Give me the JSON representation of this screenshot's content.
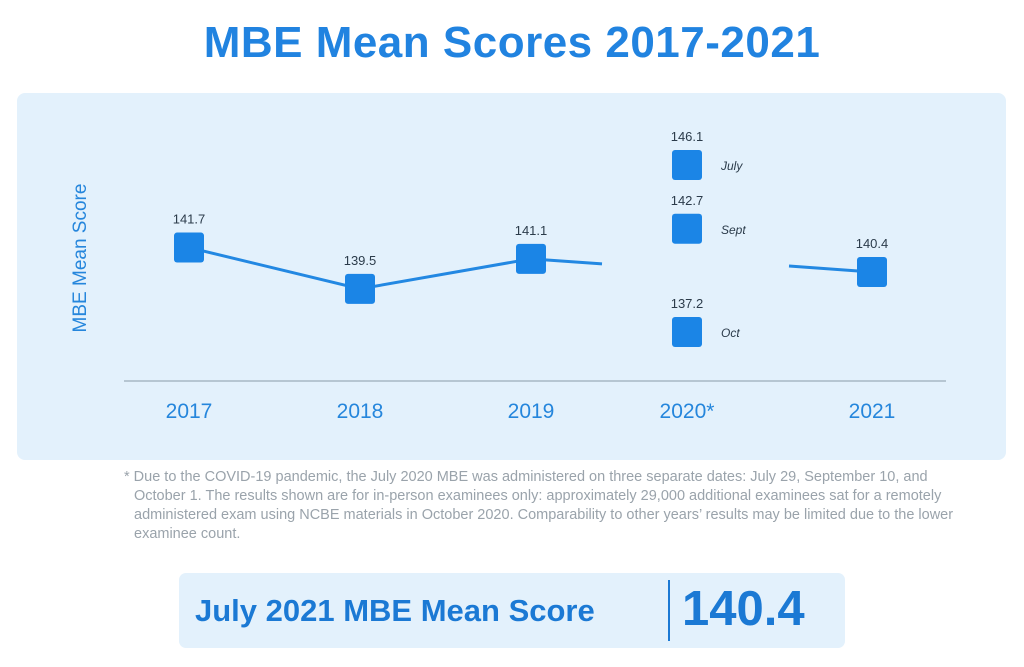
{
  "title": "MBE Mean Scores 2017-2021",
  "colors": {
    "title": "#2183e0",
    "marker": "#1b85e6",
    "line": "#2388e2",
    "axis_text": "#2586dc",
    "panel_bg": "#e3f1fc",
    "footnote": "#9aa3ab"
  },
  "chart_data": {
    "type": "line",
    "ylabel": "MBE Mean Score",
    "categories": [
      "2017",
      "2018",
      "2019",
      "2020*",
      "2021"
    ],
    "points": [
      {
        "x": "2017",
        "y": 141.7,
        "label": "141.7"
      },
      {
        "x": "2018",
        "y": 139.5,
        "label": "139.5"
      },
      {
        "x": "2019",
        "y": 141.1,
        "label": "141.1"
      },
      {
        "x": "2020*",
        "y": 146.1,
        "label": "146.1",
        "note": "July"
      },
      {
        "x": "2020*",
        "y": 142.7,
        "label": "142.7",
        "note": "Sept"
      },
      {
        "x": "2020*",
        "y": 137.2,
        "label": "137.2",
        "note": "Oct"
      },
      {
        "x": "2021",
        "y": 140.4,
        "label": "140.4"
      }
    ],
    "grid": false
  },
  "footnote": "* Due to the COVID-19 pandemic, the July 2020 MBE was administered on three separate dates: July 29, September 10, and October 1. The results shown are for in-person examinees only: approximately 29,000 additional examinees sat for a remotely administered exam using NCBE materials in October 2020. Comparability to other years’ results may be limited due to the lower examinee count.",
  "summary": {
    "label": "July 2021 MBE Mean Score",
    "value": "140.4"
  }
}
